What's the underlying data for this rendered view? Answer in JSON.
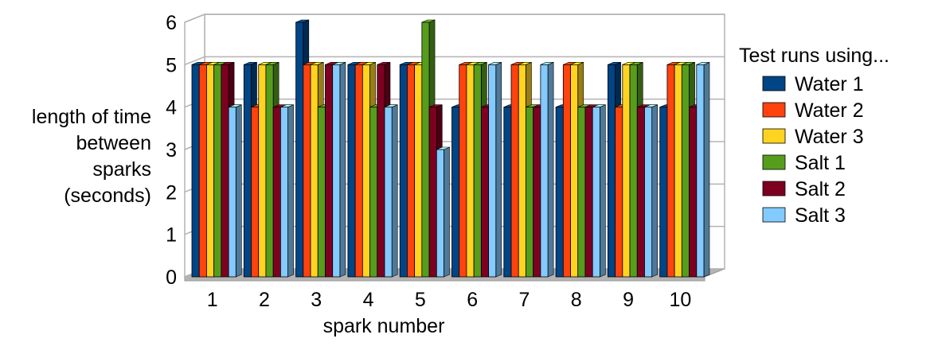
{
  "chart_data": {
    "type": "bar",
    "title": "",
    "xlabel": "spark number",
    "ylabel_lines": [
      "length of time",
      "between",
      "sparks",
      "(seconds)"
    ],
    "ylim": [
      0,
      6
    ],
    "yticks": [
      0,
      1,
      2,
      3,
      4,
      5,
      6
    ],
    "grid": true,
    "legend": {
      "title": "Test runs using...",
      "placement": "right"
    },
    "categories": [
      "1",
      "2",
      "3",
      "4",
      "5",
      "6",
      "7",
      "8",
      "9",
      "10"
    ],
    "series": [
      {
        "name": "Water 1",
        "color": "#004586",
        "values": [
          5,
          5,
          6,
          5,
          5,
          4,
          4,
          4,
          5,
          4
        ]
      },
      {
        "name": "Water 2",
        "color": "#ff420e",
        "values": [
          5,
          4,
          5,
          5,
          5,
          5,
          5,
          5,
          4,
          5
        ]
      },
      {
        "name": "Water 3",
        "color": "#ffd320",
        "values": [
          5,
          5,
          5,
          5,
          5,
          5,
          5,
          5,
          5,
          5
        ]
      },
      {
        "name": "Salt 1",
        "color": "#579d1c",
        "values": [
          5,
          5,
          4,
          4,
          6,
          5,
          4,
          4,
          5,
          5
        ]
      },
      {
        "name": "Salt 2",
        "color": "#7e0021",
        "values": [
          5,
          4,
          5,
          5,
          4,
          4,
          4,
          4,
          4,
          4
        ]
      },
      {
        "name": "Salt 3",
        "color": "#83caff",
        "values": [
          4,
          4,
          5,
          4,
          3,
          5,
          5,
          4,
          4,
          5
        ]
      }
    ]
  }
}
